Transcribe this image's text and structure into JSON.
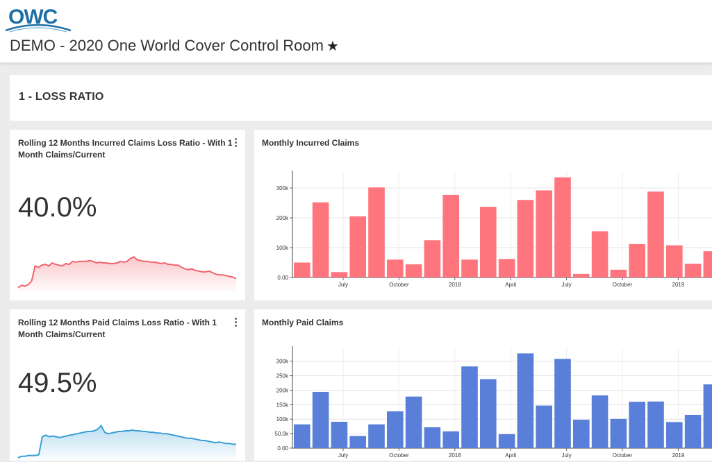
{
  "header": {
    "logo_text": "OWC",
    "title": "DEMO - 2020 One World Cover Control Room",
    "star_icon": "star-icon"
  },
  "section": {
    "title": "1 - LOSS RATIO"
  },
  "kpi": [
    {
      "title": "Rolling 12 Months Incurred Claims Loss Ratio - With 1 Month Claims/Current",
      "value": "40.0%",
      "color": "#f0626c",
      "trend": [
        5,
        8,
        7,
        9,
        14,
        34,
        32,
        35,
        36,
        34,
        38,
        36,
        35,
        34,
        37,
        36,
        40,
        39,
        40,
        40,
        40,
        41,
        40,
        38,
        39,
        38,
        38,
        37,
        37,
        38,
        40,
        39,
        40,
        44,
        46,
        42,
        41,
        40,
        40,
        39,
        39,
        38,
        37,
        38,
        36,
        36,
        35,
        35,
        32,
        30,
        29,
        30,
        28,
        27,
        26,
        26,
        27,
        25,
        23,
        22,
        22,
        21,
        20,
        19,
        17
      ]
    },
    {
      "title": "Rolling 12 Months Paid Claims Loss Ratio - With 1 Month Claims/Current",
      "value": "49.5%",
      "color": "#3a9fd6",
      "trend": [
        2,
        4,
        4,
        5,
        5,
        5,
        6,
        30,
        32,
        30,
        31,
        30,
        29,
        30,
        31,
        32,
        33,
        34,
        35,
        36,
        37,
        37,
        38,
        40,
        45,
        36,
        34,
        35,
        36,
        37,
        37,
        38,
        38,
        39,
        38,
        38,
        37,
        37,
        36,
        36,
        35,
        35,
        34,
        34,
        33,
        32,
        31,
        30,
        29,
        28,
        28,
        27,
        26,
        25,
        25,
        24,
        23,
        22,
        23,
        22,
        21,
        21,
        20,
        20
      ]
    }
  ],
  "charts": [
    {
      "title": "Monthly Incurred Claims",
      "color": "#ff757d"
    },
    {
      "title": "Monthly Paid Claims",
      "color": "#5a7fd8"
    }
  ],
  "chart_data": [
    {
      "type": "bar",
      "title": "Monthly Incurred Claims",
      "x_tick_labels": [
        "July",
        "October",
        "2018",
        "April",
        "July",
        "October",
        "2019"
      ],
      "x_tick_bar_index": [
        2,
        5,
        8,
        11,
        14,
        17,
        20
      ],
      "y_ticks": [
        "0.00",
        "100k",
        "200k",
        "300k"
      ],
      "y_tick_values": [
        0,
        100000,
        200000,
        300000
      ],
      "ylim": [
        0,
        335000
      ],
      "values": [
        50000,
        252000,
        18000,
        205000,
        302000,
        60000,
        44000,
        125000,
        277000,
        60000,
        237000,
        62000,
        260000,
        292000,
        336000,
        12000,
        155000,
        26000,
        112000,
        288000,
        108000,
        46000,
        88000
      ]
    },
    {
      "type": "bar",
      "title": "Monthly Paid Claims",
      "x_tick_labels": [
        "July",
        "October",
        "2018",
        "April",
        "July",
        "October",
        "2019"
      ],
      "x_tick_bar_index": [
        2,
        5,
        8,
        11,
        14,
        17,
        20
      ],
      "y_ticks": [
        "0.00",
        "50.0k",
        "100k",
        "150k",
        "200k",
        "250k",
        "300k"
      ],
      "y_tick_values": [
        0,
        50000,
        100000,
        150000,
        200000,
        250000,
        300000
      ],
      "ylim": [
        0,
        328000
      ],
      "values": [
        82000,
        194000,
        91000,
        42000,
        82000,
        127000,
        178000,
        72000,
        58000,
        282000,
        238000,
        48000,
        327000,
        147000,
        308000,
        98000,
        182000,
        101000,
        160000,
        161000,
        90000,
        115000,
        220000
      ]
    }
  ]
}
